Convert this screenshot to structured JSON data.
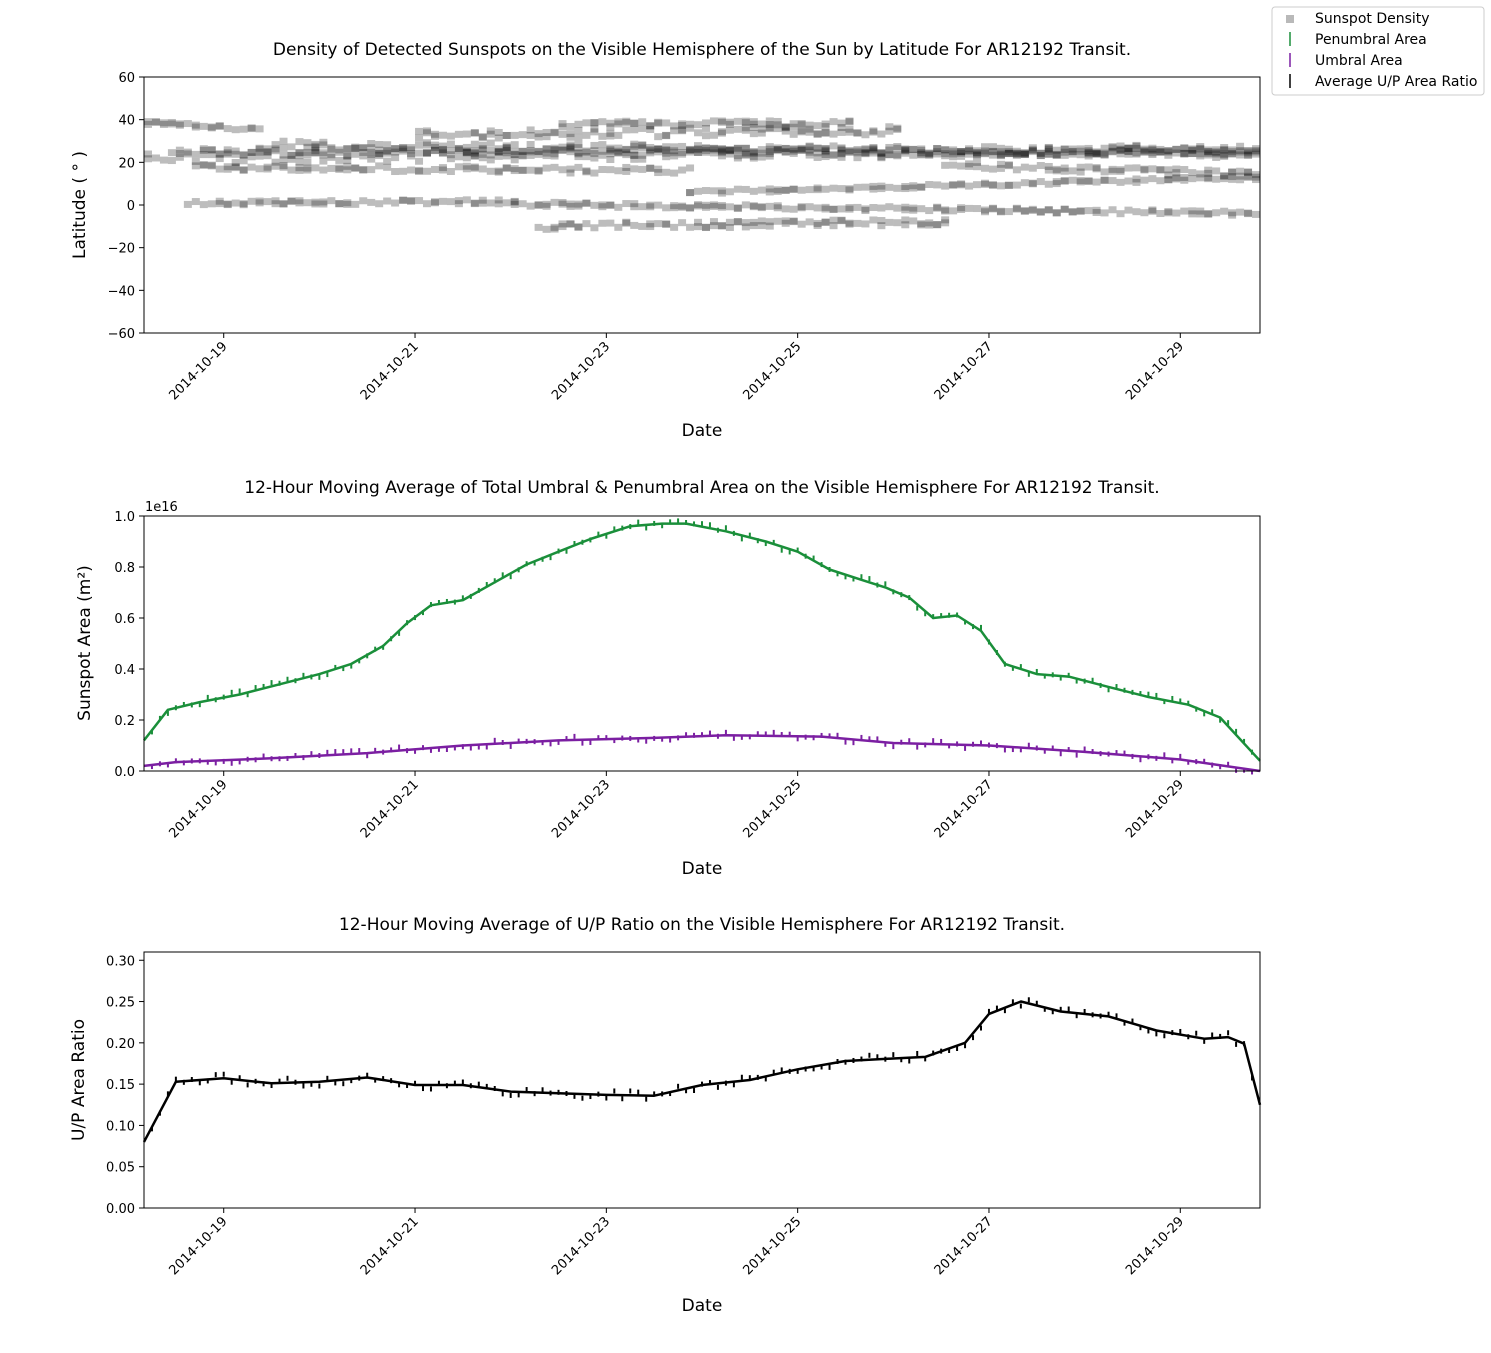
{
  "chart_data": [
    {
      "type": "scatter",
      "title": "Density of Detected Sunspots on the Visible Hemisphere of the Sun by Latitude For AR12192 Transit.",
      "xlabel": "Date",
      "ylabel": "Latitude ($^\\circ$)",
      "ylabel_display": "Latitude ( ° )",
      "xlim": [
        "2014-10-18 04:00",
        "2014-10-29 20:00"
      ],
      "ylim": [
        -60,
        60
      ],
      "x_ticks": [
        "2014-10-19",
        "2014-10-21",
        "2014-10-23",
        "2014-10-25",
        "2014-10-27",
        "2014-10-29"
      ],
      "y_ticks": [
        "60",
        "40",
        "20",
        "0",
        "−20",
        "−40",
        "−60"
      ],
      "grid": false,
      "series": [
        {
          "name": "Sunspot Density",
          "color": "#b9b9b9",
          "marker": "square",
          "bands": [
            {
              "x": [
                "2014-10-18 04:00",
                "2014-10-19 08:00"
              ],
              "lat": [
                38.5,
                35.0
              ],
              "spread": 2
            },
            {
              "x": [
                "2014-10-18 04:00",
                "2014-10-29 20:00"
              ],
              "lat": [
                22.0,
                26.0
              ],
              "spread": 5
            },
            {
              "x": [
                "2014-10-18 10:00",
                "2014-10-29 20:00"
              ],
              "lat": [
                25.0,
                25.0
              ],
              "spread": 4
            },
            {
              "x": [
                "2014-10-19 12:00",
                "2014-10-29 20:00"
              ],
              "lat": [
                28.0,
                24.0
              ],
              "spread": 4
            },
            {
              "x": [
                "2014-10-21 00:00",
                "2014-10-26 00:00"
              ],
              "lat": [
                33.0,
                35.0
              ],
              "spread": 4
            },
            {
              "x": [
                "2014-10-22 12:00",
                "2014-10-25 12:00"
              ],
              "lat": [
                38.0,
                38.0
              ],
              "spread": 3
            },
            {
              "x": [
                "2014-10-26 12:00",
                "2014-10-29 20:00"
              ],
              "lat": [
                19.0,
                14.0
              ],
              "spread": 3
            },
            {
              "x": [
                "2014-10-18 16:00",
                "2014-10-23 20:00"
              ],
              "lat": [
                17.5,
                16.0
              ],
              "spread": 3
            },
            {
              "x": [
                "2014-10-18 14:00",
                "2014-10-22 00:00"
              ],
              "lat": [
                1.0,
                1.5
              ],
              "spread": 2
            },
            {
              "x": [
                "2014-10-22 00:00",
                "2014-10-29 20:00"
              ],
              "lat": [
                0.5,
                -4.0
              ],
              "spread": 2
            },
            {
              "x": [
                "2014-10-22 06:00",
                "2014-10-26 12:00"
              ],
              "lat": [
                -10.0,
                -8.0
              ],
              "spread": 3
            },
            {
              "x": [
                "2014-10-23 20:00",
                "2014-10-29 20:00"
              ],
              "lat": [
                6.0,
                13.0
              ],
              "spread": 2
            }
          ]
        }
      ]
    },
    {
      "type": "line",
      "title": "12-Hour Moving Average of Total Umbral & Penumbral Area on the Visible Hemisphere For AR12192 Transit.",
      "xlabel": "Date",
      "ylabel": "Sunspot Area (m$^2$)",
      "ylabel_display": "Sunspot Area (m²)",
      "offset_text": "1e16",
      "xlim": [
        "2014-10-18 04:00",
        "2014-10-29 20:00"
      ],
      "ylim": [
        0.0,
        1.0
      ],
      "x_ticks": [
        "2014-10-19",
        "2014-10-21",
        "2014-10-23",
        "2014-10-25",
        "2014-10-27",
        "2014-10-29"
      ],
      "y_ticks": [
        "1.0",
        "0.8",
        "0.6",
        "0.4",
        "0.2",
        "0.0"
      ],
      "grid": false,
      "series": [
        {
          "name": "Penumbral Area",
          "color": "#1a8f3a",
          "x": [
            "2014-10-18 04:00",
            "2014-10-18 10:00",
            "2014-10-18 18:00",
            "2014-10-19 04:00",
            "2014-10-19 14:00",
            "2014-10-20 00:00",
            "2014-10-20 08:00",
            "2014-10-20 16:00",
            "2014-10-20 22:00",
            "2014-10-21 04:00",
            "2014-10-21 12:00",
            "2014-10-21 20:00",
            "2014-10-22 04:00",
            "2014-10-22 12:00",
            "2014-10-22 20:00",
            "2014-10-23 06:00",
            "2014-10-23 14:00",
            "2014-10-23 20:00",
            "2014-10-24 06:00",
            "2014-10-24 16:00",
            "2014-10-25 00:00",
            "2014-10-25 08:00",
            "2014-10-25 16:00",
            "2014-10-25 22:00",
            "2014-10-26 04:00",
            "2014-10-26 10:00",
            "2014-10-26 16:00",
            "2014-10-26 22:00",
            "2014-10-27 04:00",
            "2014-10-27 12:00",
            "2014-10-27 20:00",
            "2014-10-28 06:00",
            "2014-10-28 16:00",
            "2014-10-29 02:00",
            "2014-10-29 10:00",
            "2014-10-29 20:00"
          ],
          "values": [
            0.12,
            0.24,
            0.27,
            0.3,
            0.34,
            0.38,
            0.42,
            0.49,
            0.58,
            0.65,
            0.67,
            0.74,
            0.81,
            0.86,
            0.91,
            0.96,
            0.97,
            0.97,
            0.94,
            0.9,
            0.86,
            0.79,
            0.75,
            0.72,
            0.68,
            0.6,
            0.61,
            0.55,
            0.42,
            0.38,
            0.37,
            0.33,
            0.29,
            0.26,
            0.21,
            0.04
          ]
        },
        {
          "name": "Umbral Area",
          "color": "#7b1fa2",
          "x": [
            "2014-10-18 04:00",
            "2014-10-18 12:00",
            "2014-10-19 12:00",
            "2014-10-20 12:00",
            "2014-10-21 12:00",
            "2014-10-22 12:00",
            "2014-10-23 12:00",
            "2014-10-24 06:00",
            "2014-10-25 06:00",
            "2014-10-26 00:00",
            "2014-10-27 00:00",
            "2014-10-28 00:00",
            "2014-10-29 00:00",
            "2014-10-29 20:00"
          ],
          "values": [
            0.02,
            0.035,
            0.05,
            0.07,
            0.1,
            0.12,
            0.13,
            0.14,
            0.135,
            0.11,
            0.1,
            0.075,
            0.045,
            0.0
          ]
        }
      ]
    },
    {
      "type": "line",
      "title": "12-Hour Moving Average of U/P Ratio on the Visible Hemisphere For AR12192 Transit.",
      "xlabel": "Date",
      "ylabel": "U/P Area Ratio",
      "xlim": [
        "2014-10-18 04:00",
        "2014-10-29 20:00"
      ],
      "ylim": [
        0.0,
        0.31
      ],
      "x_ticks": [
        "2014-10-19",
        "2014-10-21",
        "2014-10-23",
        "2014-10-25",
        "2014-10-27",
        "2014-10-29"
      ],
      "y_ticks": [
        "0.30",
        "0.25",
        "0.20",
        "0.15",
        "0.10",
        "0.05",
        "0.00"
      ],
      "grid": false,
      "series": [
        {
          "name": "Average U/P Area Ratio",
          "color": "#000000",
          "x": [
            "2014-10-18 04:00",
            "2014-10-18 12:00",
            "2014-10-19 00:00",
            "2014-10-19 12:00",
            "2014-10-20 00:00",
            "2014-10-20 12:00",
            "2014-10-21 00:00",
            "2014-10-21 12:00",
            "2014-10-22 00:00",
            "2014-10-22 12:00",
            "2014-10-23 00:00",
            "2014-10-23 12:00",
            "2014-10-24 00:00",
            "2014-10-24 12:00",
            "2014-10-25 00:00",
            "2014-10-25 12:00",
            "2014-10-26 00:00",
            "2014-10-26 08:00",
            "2014-10-26 18:00",
            "2014-10-27 00:00",
            "2014-10-27 08:00",
            "2014-10-27 18:00",
            "2014-10-28 06:00",
            "2014-10-28 18:00",
            "2014-10-29 06:00",
            "2014-10-29 12:00",
            "2014-10-29 16:00",
            "2014-10-29 20:00"
          ],
          "values": [
            0.08,
            0.153,
            0.157,
            0.151,
            0.153,
            0.158,
            0.149,
            0.149,
            0.141,
            0.139,
            0.137,
            0.136,
            0.149,
            0.155,
            0.168,
            0.178,
            0.181,
            0.183,
            0.2,
            0.235,
            0.25,
            0.238,
            0.232,
            0.215,
            0.205,
            0.207,
            0.199,
            0.125
          ]
        }
      ]
    }
  ],
  "legend": {
    "placement": "top-right",
    "entries": [
      {
        "label": "Sunspot Density",
        "color": "#b9b9b9",
        "marker": "square"
      },
      {
        "label": "Penumbral Area",
        "color": "#1a8f3a",
        "marker": "errorbar"
      },
      {
        "label": "Umbral Area",
        "color": "#7b1fa2",
        "marker": "errorbar"
      },
      {
        "label": "Average U/P Area Ratio",
        "color": "#000000",
        "marker": "errorbar"
      }
    ]
  }
}
